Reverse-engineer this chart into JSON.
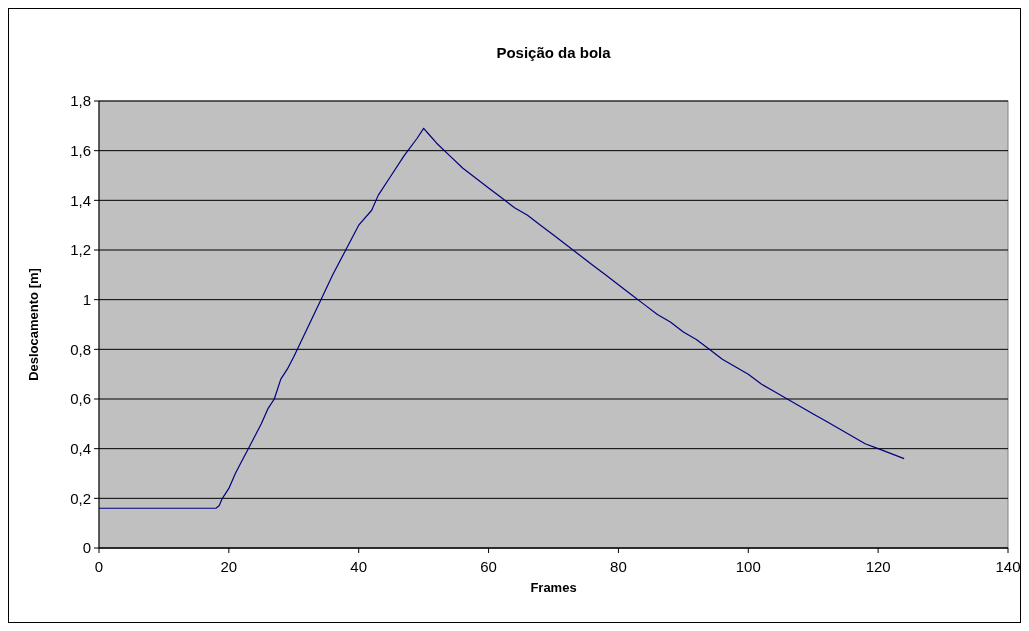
{
  "chart_data": {
    "type": "line",
    "title": "Posição da bola",
    "xlabel": "Frames",
    "ylabel": "Deslocamento [m]",
    "x": [
      0,
      18,
      18.5,
      19,
      20,
      21,
      22,
      23,
      24,
      25,
      26,
      27,
      28,
      29,
      30,
      32,
      34,
      36,
      38,
      40,
      42,
      43,
      45,
      47,
      49,
      50,
      51,
      52,
      54,
      56,
      58,
      60,
      62,
      64,
      66,
      68,
      70,
      72,
      74,
      76,
      78,
      80,
      82,
      84,
      86,
      88,
      90,
      92,
      94,
      96,
      98,
      100,
      102,
      104,
      106,
      108,
      110,
      112,
      114,
      116,
      118,
      120,
      122,
      124
    ],
    "series": [
      {
        "color": "#000080",
        "values": [
          0.16,
          0.16,
          0.17,
          0.2,
          0.24,
          0.3,
          0.35,
          0.4,
          0.45,
          0.5,
          0.56,
          0.6,
          0.68,
          0.72,
          0.77,
          0.88,
          0.99,
          1.1,
          1.2,
          1.3,
          1.36,
          1.42,
          1.5,
          1.58,
          1.65,
          1.69,
          1.66,
          1.63,
          1.58,
          1.53,
          1.49,
          1.45,
          1.41,
          1.37,
          1.34,
          1.3,
          1.26,
          1.22,
          1.18,
          1.14,
          1.1,
          1.06,
          1.02,
          0.98,
          0.94,
          0.91,
          0.87,
          0.84,
          0.8,
          0.76,
          0.73,
          0.7,
          0.66,
          0.63,
          0.6,
          0.57,
          0.54,
          0.51,
          0.48,
          0.45,
          0.42,
          0.4,
          0.38,
          0.36
        ]
      }
    ],
    "xlim": [
      0,
      140
    ],
    "xticks": [
      0,
      20,
      40,
      60,
      80,
      100,
      120,
      140
    ],
    "ylim": [
      0,
      1.8
    ],
    "yticks": [
      0,
      {
        "value": 0.2,
        "label": "0,2"
      },
      {
        "value": 0.4,
        "label": "0,4"
      },
      {
        "value": 0.6,
        "label": "0,6"
      },
      {
        "value": 0.8,
        "label": "0,8"
      },
      1,
      {
        "value": 1.2,
        "label": "1,2"
      },
      {
        "value": 1.4,
        "label": "1,4"
      },
      {
        "value": 1.6,
        "label": "1,6"
      },
      {
        "value": 1.8,
        "label": "1,8"
      }
    ],
    "grid": "y",
    "marker": "none",
    "line_style": "solid"
  }
}
